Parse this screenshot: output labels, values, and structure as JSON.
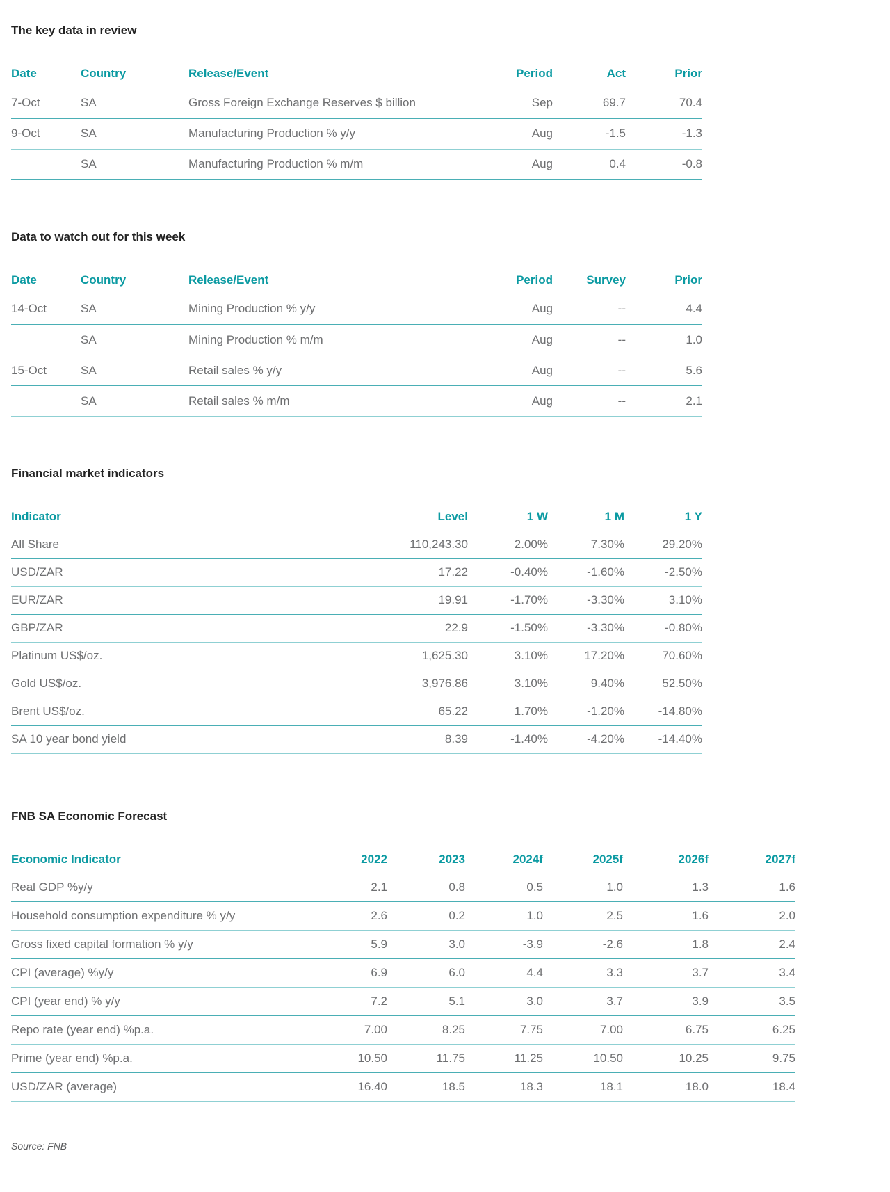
{
  "colors": {
    "accent_teal": "#0b9aa2",
    "divider_teal": "#4aafb5",
    "body_text": "#6e6f71",
    "title_text": "#232323"
  },
  "sections": [
    {
      "title": "The key data in review",
      "columns": [
        "Date",
        "Country",
        "Release/Event",
        "Period",
        "Act",
        "Prior"
      ],
      "rows": [
        [
          "7-Oct",
          "SA",
          "Gross Foreign Exchange Reserves $ billion",
          "Sep",
          "69.7",
          "70.4"
        ],
        [
          "9-Oct",
          "SA",
          "Manufacturing Production % y/y",
          "Aug",
          "-1.5",
          "-1.3"
        ],
        [
          "",
          "SA",
          "Manufacturing Production % m/m",
          "Aug",
          "0.4",
          "-0.8"
        ]
      ]
    },
    {
      "title": "Data to watch out for this week",
      "columns": [
        "Date",
        "Country",
        "Release/Event",
        "Period",
        "Survey",
        "Prior"
      ],
      "rows": [
        [
          "14-Oct",
          "SA",
          "Mining Production % y/y",
          "Aug",
          "--",
          "4.4"
        ],
        [
          "",
          "SA",
          "Mining Production % m/m",
          "Aug",
          "--",
          "1.0"
        ],
        [
          "15-Oct",
          "SA",
          "Retail sales % y/y",
          "Aug",
          "--",
          "5.6"
        ],
        [
          "",
          "SA",
          "Retail sales % m/m",
          "Aug",
          "--",
          "2.1"
        ]
      ]
    },
    {
      "title": "Financial market indicators",
      "columns": [
        "Indicator",
        "Level",
        "1 W",
        "1 M",
        "1 Y"
      ],
      "rows": [
        [
          "All Share",
          "110,243.30",
          "2.00%",
          "7.30%",
          "29.20%"
        ],
        [
          "USD/ZAR",
          "17.22",
          "-0.40%",
          "-1.60%",
          "-2.50%"
        ],
        [
          "EUR/ZAR",
          "19.91",
          "-1.70%",
          "-3.30%",
          "3.10%"
        ],
        [
          "GBP/ZAR",
          "22.9",
          "-1.50%",
          "-3.30%",
          "-0.80%"
        ],
        [
          "Platinum US$/oz.",
          "1,625.30",
          "3.10%",
          "17.20%",
          "70.60%"
        ],
        [
          "Gold US$/oz.",
          "3,976.86",
          "3.10%",
          "9.40%",
          "52.50%"
        ],
        [
          "Brent US$/oz.",
          "65.22",
          "1.70%",
          "-1.20%",
          "-14.80%"
        ],
        [
          "SA 10 year bond yield",
          "8.39",
          "-1.40%",
          "-4.20%",
          "-14.40%"
        ]
      ]
    },
    {
      "title": "FNB SA Economic Forecast",
      "columns": [
        "Economic Indicator",
        "2022",
        "2023",
        "2024f",
        "2025f",
        "2026f",
        "2027f"
      ],
      "rows": [
        [
          "Real GDP %y/y",
          "2.1",
          "0.8",
          "0.5",
          "1.0",
          "1.3",
          "1.6"
        ],
        [
          "Household consumption expenditure % y/y",
          "2.6",
          "0.2",
          "1.0",
          "2.5",
          "1.6",
          "2.0"
        ],
        [
          "Gross fixed capital formation % y/y",
          "5.9",
          "3.0",
          "-3.9",
          "-2.6",
          "1.8",
          "2.4"
        ],
        [
          "CPI (average) %y/y",
          "6.9",
          "6.0",
          "4.4",
          "3.3",
          "3.7",
          "3.4"
        ],
        [
          "CPI (year end) % y/y",
          "7.2",
          "5.1",
          "3.0",
          "3.7",
          "3.9",
          "3.5"
        ],
        [
          "Repo rate (year end) %p.a.",
          "7.00",
          "8.25",
          "7.75",
          "7.00",
          "6.75",
          "6.25"
        ],
        [
          "Prime (year end) %p.a.",
          "10.50",
          "11.75",
          "11.25",
          "10.50",
          "10.25",
          "9.75"
        ],
        [
          "USD/ZAR (average)",
          "16.40",
          "18.5",
          "18.3",
          "18.1",
          "18.0",
          "18.4"
        ]
      ]
    }
  ],
  "footer": {
    "source": "Source: FNB"
  }
}
